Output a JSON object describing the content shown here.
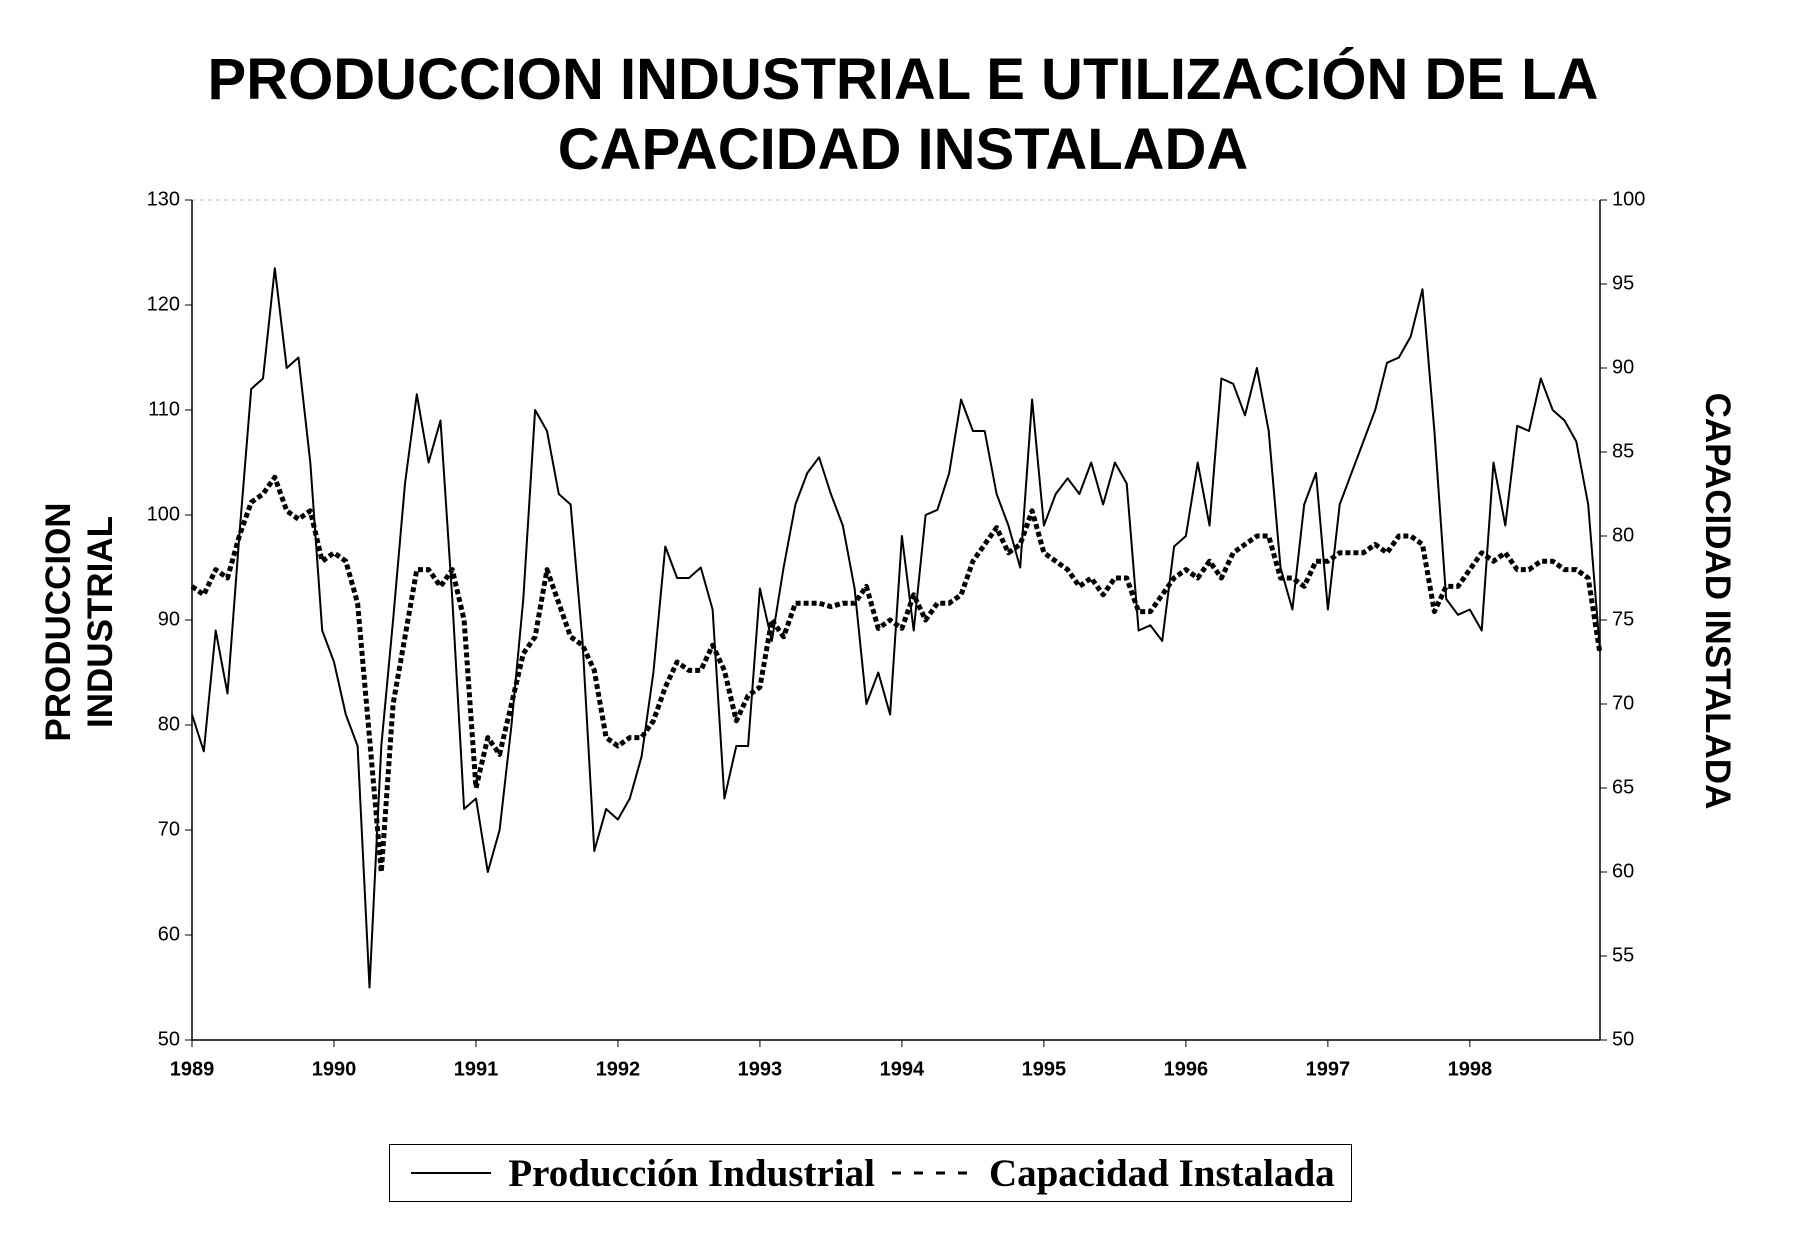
{
  "chart_data": {
    "type": "line",
    "title": "PRODUCCION INDUSTRIAL E UTILIZACIÓN DE LA CAPACIDAD INSTALADA",
    "ylabel": "PRODUCCION INDUSTRIAL",
    "y2label": "CAPACIDAD INSTALADA",
    "categories": [
      "1989",
      null,
      null,
      null,
      null,
      null,
      null,
      null,
      null,
      null,
      null,
      null,
      "1990",
      null,
      null,
      null,
      null,
      null,
      null,
      null,
      null,
      null,
      null,
      null,
      "1991",
      null,
      null,
      null,
      null,
      null,
      null,
      null,
      null,
      null,
      null,
      null,
      "1992",
      null,
      null,
      null,
      null,
      null,
      null,
      null,
      null,
      null,
      null,
      null,
      "1993",
      null,
      null,
      null,
      null,
      null,
      null,
      null,
      null,
      null,
      null,
      null,
      "1994",
      null,
      null,
      null,
      null,
      null,
      null,
      null,
      null,
      null,
      null,
      null,
      "1995",
      null,
      null,
      null,
      null,
      null,
      null,
      null,
      null,
      null,
      null,
      null,
      "1996",
      null,
      null,
      null,
      null,
      null,
      null,
      null,
      null,
      null,
      null,
      null,
      "1997",
      null,
      null,
      null,
      null,
      null,
      null,
      null,
      null,
      null,
      null,
      null,
      "1998",
      null,
      null,
      null,
      null,
      null,
      null,
      null,
      null,
      null,
      null,
      null
    ],
    "series": [
      {
        "name": "Producción Industrial",
        "color": "#000000",
        "style": "solid",
        "axis": "y",
        "values": [
          81,
          77.5,
          89,
          83,
          98,
          112,
          113,
          123.5,
          114,
          115,
          105,
          89,
          86,
          81,
          78,
          55,
          78,
          90,
          103,
          111.5,
          105,
          109,
          92,
          72,
          73,
          66,
          70,
          80,
          92,
          110,
          108,
          102,
          101,
          88,
          68,
          72,
          71,
          73,
          77,
          85,
          97,
          94,
          94,
          95,
          91,
          73,
          78,
          78,
          93,
          88,
          95,
          101,
          104,
          105.5,
          102,
          99,
          93,
          82,
          85,
          81,
          98,
          89,
          100,
          100.5,
          104,
          111,
          108,
          108,
          102,
          99,
          95,
          111,
          99,
          102,
          103.5,
          102,
          105,
          101,
          105,
          103,
          89,
          89.5,
          88,
          97,
          98,
          105,
          99,
          113,
          112.5,
          109.5,
          114,
          108,
          95,
          91,
          101,
          104,
          91,
          101,
          104,
          107,
          110,
          114.5,
          115,
          117,
          121.5,
          108,
          92,
          90.5,
          91,
          89,
          105,
          99,
          108.5,
          108,
          113,
          110,
          109,
          107,
          101,
          87
        ]
      },
      {
        "name": "Capacidad Instalada",
        "color": "#000000",
        "style": "dashed",
        "axis": "y2",
        "values": [
          77,
          76.5,
          78,
          77.5,
          80,
          82,
          82.5,
          83.5,
          81.5,
          81,
          81.5,
          78.5,
          79,
          78.5,
          76,
          68,
          60,
          70,
          74,
          78,
          78,
          77,
          78,
          75,
          65,
          68,
          67,
          70,
          73,
          74,
          78,
          76,
          74,
          73.5,
          72,
          68,
          67.5,
          68,
          68,
          69,
          71,
          72.5,
          72,
          72,
          73.5,
          72,
          69,
          70.5,
          71,
          75,
          74,
          76,
          76,
          76,
          75.8,
          76,
          76,
          77,
          74.5,
          75,
          74.5,
          76.5,
          75,
          76,
          76,
          76.5,
          78.5,
          79.5,
          80.5,
          79,
          79.5,
          81.5,
          79,
          78.5,
          78,
          77,
          77.5,
          76.5,
          77.5,
          77.5,
          75.5,
          75.5,
          76.5,
          77.5,
          78,
          77.5,
          78.5,
          77.5,
          79,
          79.5,
          80,
          80,
          77.5,
          77.5,
          77,
          78.5,
          78.5,
          79,
          79,
          79,
          79.5,
          79,
          80,
          80,
          79.5,
          75.5,
          77,
          77,
          78,
          79,
          78.5,
          79,
          78,
          78,
          78.5,
          78.5,
          78,
          78,
          77.5,
          73
        ]
      }
    ],
    "ylim": [
      50,
      130
    ],
    "yticks": [
      50,
      60,
      70,
      80,
      90,
      100,
      110,
      120,
      130
    ],
    "y2lim": [
      50,
      100
    ],
    "y2ticks": [
      50,
      55,
      60,
      65,
      70,
      75,
      80,
      85,
      90,
      95,
      100
    ],
    "legend": "bottom"
  }
}
